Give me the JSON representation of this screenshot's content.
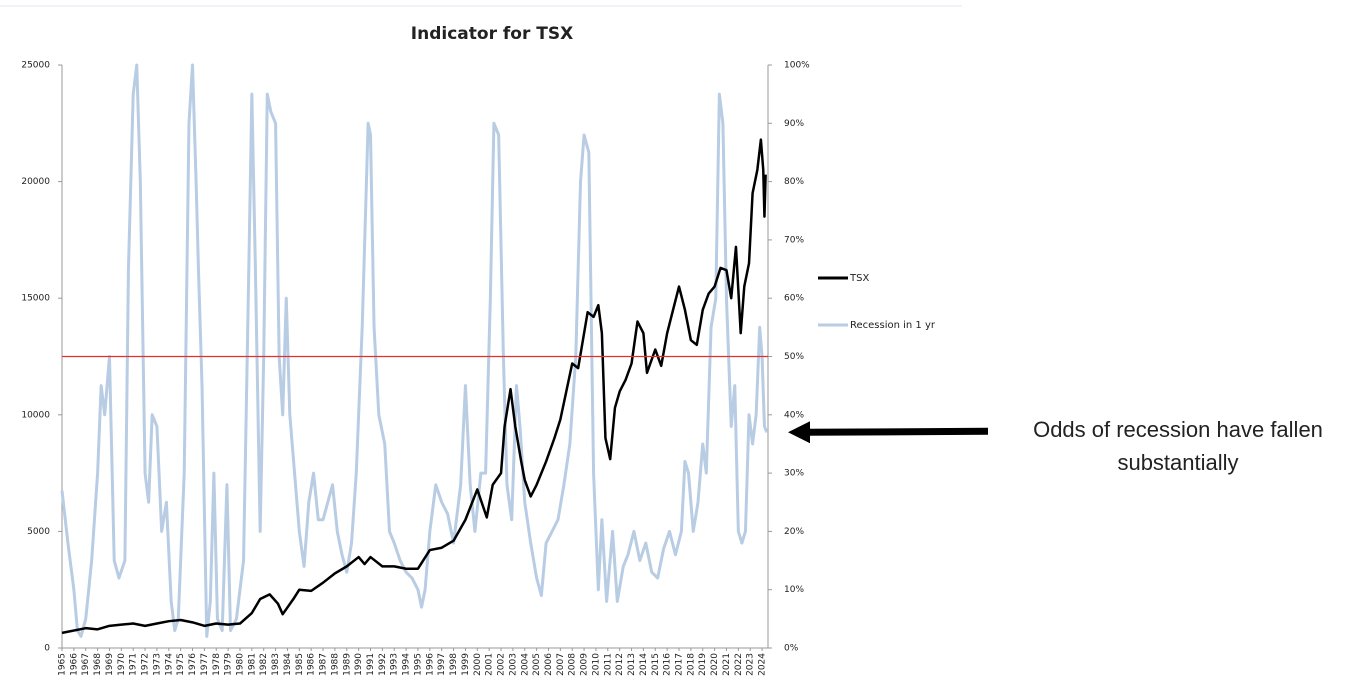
{
  "chart_data": {
    "type": "line",
    "title": "Indicator for TSX",
    "xlim": [
      1965,
      2024.5
    ],
    "xticks": [
      1965,
      1966,
      1967,
      1968,
      1969,
      1970,
      1971,
      1972,
      1973,
      1974,
      1975,
      1976,
      1977,
      1978,
      1979,
      1980,
      1981,
      1982,
      1983,
      1984,
      1985,
      1986,
      1987,
      1988,
      1989,
      1990,
      1991,
      1992,
      1993,
      1994,
      1995,
      1996,
      1997,
      1998,
      1999,
      2000,
      2001,
      2002,
      2003,
      2004,
      2005,
      2006,
      2007,
      2008,
      2009,
      2010,
      2011,
      2012,
      2013,
      2014,
      2015,
      2016,
      2017,
      2018,
      2019,
      2020,
      2021,
      2022,
      2023,
      2024
    ],
    "ylim": [
      0,
      25000
    ],
    "yticks": [
      0,
      5000,
      10000,
      15000,
      20000,
      25000
    ],
    "y2lim": [
      0,
      100
    ],
    "y2ticks": [
      {
        "value": 0,
        "label": "0%"
      },
      {
        "value": 10,
        "label": "10%"
      },
      {
        "value": 20,
        "label": "20%"
      },
      {
        "value": 30,
        "label": "30%"
      },
      {
        "value": 40,
        "label": "40%"
      },
      {
        "value": 50,
        "label": "50%"
      },
      {
        "value": 60,
        "label": "60%"
      },
      {
        "value": 70,
        "label": "70%"
      },
      {
        "value": 80,
        "label": "80%"
      },
      {
        "value": 90,
        "label": "90%"
      },
      {
        "value": 100,
        "label": "100%"
      }
    ],
    "legend": "right",
    "reference_line": {
      "value": 50,
      "axis": "y2",
      "color": "#e03030"
    },
    "annotation": {
      "lines": [
        "Odds of recession have fallen",
        "substantially"
      ],
      "points_to": 37,
      "axis": "y2"
    },
    "series": [
      {
        "name": "TSX",
        "color": "#000000",
        "axis": "y",
        "x": [
          1965,
          1967,
          1968,
          1969,
          1970,
          1971,
          1972,
          1973,
          1974,
          1975,
          1976,
          1977,
          1978,
          1979,
          1980,
          1981,
          1981.7,
          1982.5,
          1983.2,
          1983.6,
          1984.5,
          1985,
          1986,
          1987,
          1988,
          1989,
          1990,
          1990.5,
          1991,
          1992,
          1993,
          1994,
          1995,
          1996,
          1997,
          1998,
          1999,
          2000,
          2000.8,
          2001.3,
          2002,
          2002.3,
          2002.8,
          2003.2,
          2003.7,
          2004,
          2004.5,
          2005,
          2005.8,
          2006.5,
          2007,
          2007.5,
          2008,
          2008.5,
          2009,
          2009.3,
          2009.8,
          2010.2,
          2010.5,
          2010.8,
          2011.2,
          2011.6,
          2012,
          2012.5,
          2013,
          2013.5,
          2014,
          2014.3,
          2015,
          2015.5,
          2016,
          2016.5,
          2017,
          2017.5,
          2018,
          2018.5,
          2019,
          2019.5,
          2020,
          2020.5,
          2021,
          2021.4,
          2021.8,
          2022.2,
          2022.5,
          2022.9,
          2023.2,
          2023.6,
          2023.9,
          2024.1,
          2024.2,
          2024.3
        ],
        "values": [
          650,
          850,
          800,
          950,
          1000,
          1050,
          950,
          1050,
          1150,
          1200,
          1100,
          950,
          1050,
          1000,
          1050,
          1500,
          2100,
          2300,
          1900,
          1450,
          2100,
          2500,
          2450,
          2800,
          3200,
          3500,
          3900,
          3600,
          3900,
          3500,
          3500,
          3400,
          3400,
          4200,
          4300,
          4600,
          5500,
          6800,
          5600,
          7000,
          7500,
          9500,
          11100,
          9500,
          8000,
          7200,
          6500,
          7000,
          8000,
          9000,
          9800,
          11000,
          12200,
          12000,
          13500,
          14400,
          14200,
          14700,
          13500,
          9000,
          8100,
          10300,
          11000,
          11500,
          12200,
          14000,
          13500,
          11800,
          12800,
          12100,
          13500,
          14500,
          15500,
          14500,
          13200,
          13000,
          14500,
          15200,
          15500,
          16300,
          16200,
          15000,
          17200,
          13500,
          15500,
          16500,
          19500,
          20500,
          21800,
          20500,
          18500,
          20300
        ]
      },
      {
        "name": "Recession in 1 yr",
        "color": "#b8cce4",
        "axis": "y2",
        "x": [
          1965,
          1965.5,
          1966,
          1966.3,
          1966.6,
          1967,
          1967.5,
          1968,
          1968.3,
          1968.6,
          1969,
          1969.4,
          1969.8,
          1970.3,
          1970.6,
          1971,
          1971.3,
          1971.6,
          1972,
          1972.3,
          1972.6,
          1973,
          1973.4,
          1973.8,
          1974.2,
          1974.5,
          1974.8,
          1975.3,
          1975.7,
          1976,
          1976.3,
          1976.5,
          1976.8,
          1977.2,
          1977.5,
          1977.8,
          1978.1,
          1978.5,
          1978.9,
          1979.2,
          1979.7,
          1980.3,
          1980.7,
          1981,
          1981.3,
          1981.7,
          1982,
          1982.3,
          1982.6,
          1983,
          1983.3,
          1983.6,
          1983.9,
          1984.2,
          1984.6,
          1985,
          1985.4,
          1985.8,
          1986.2,
          1986.6,
          1987,
          1987.4,
          1987.8,
          1988.2,
          1988.6,
          1989,
          1989.4,
          1989.8,
          1990.3,
          1990.8,
          1991,
          1991.3,
          1991.7,
          1992.2,
          1992.6,
          1993,
          1993.5,
          1994,
          1994.5,
          1995,
          1995.3,
          1995.6,
          1996,
          1996.5,
          1997,
          1997.5,
          1998,
          1998.6,
          1999,
          1999.4,
          1999.8,
          2000.3,
          2000.7,
          2001.1,
          2001.4,
          2001.8,
          2002.2,
          2002.5,
          2002.9,
          2003.3,
          2003.6,
          2004,
          2004.5,
          2005,
          2005.4,
          2005.8,
          2006.3,
          2006.8,
          2007.3,
          2007.8,
          2008.3,
          2008.7,
          2009,
          2009.4,
          2009.8,
          2010.2,
          2010.5,
          2010.9,
          2011.4,
          2011.8,
          2012.3,
          2012.7,
          2013.2,
          2013.7,
          2014.2,
          2014.7,
          2015.2,
          2015.7,
          2016.2,
          2016.7,
          2017.2,
          2017.5,
          2017.8,
          2018.2,
          2018.6,
          2019,
          2019.3,
          2019.7,
          2020.1,
          2020.4,
          2020.7,
          2021,
          2021.4,
          2021.7,
          2022,
          2022.3,
          2022.6,
          2022.9,
          2023.2,
          2023.5,
          2023.8,
          2024,
          2024.2,
          2024.4
        ],
        "values": [
          27,
          18,
          10,
          3,
          2,
          5,
          15,
          30,
          45,
          40,
          50,
          15,
          12,
          15,
          65,
          95,
          100,
          80,
          30,
          25,
          40,
          38,
          20,
          25,
          8,
          3,
          5,
          30,
          90,
          100,
          80,
          65,
          45,
          2,
          8,
          30,
          5,
          3,
          28,
          3,
          5,
          15,
          60,
          95,
          65,
          20,
          50,
          95,
          92,
          90,
          50,
          40,
          60,
          40,
          30,
          20,
          14,
          25,
          30,
          22,
          22,
          25,
          28,
          20,
          16,
          13,
          18,
          30,
          55,
          90,
          88,
          55,
          40,
          35,
          20,
          18,
          15,
          13,
          12,
          10,
          7,
          10,
          20,
          28,
          25,
          23,
          18,
          28,
          45,
          28,
          20,
          30,
          30,
          60,
          90,
          88,
          50,
          28,
          22,
          45,
          38,
          25,
          18,
          12,
          9,
          18,
          20,
          22,
          28,
          35,
          50,
          80,
          88,
          85,
          30,
          10,
          22,
          8,
          20,
          8,
          14,
          16,
          20,
          15,
          18,
          13,
          12,
          17,
          20,
          16,
          20,
          32,
          30,
          20,
          25,
          35,
          30,
          55,
          60,
          95,
          90,
          60,
          38,
          45,
          20,
          18,
          20,
          40,
          35,
          40,
          55,
          50,
          38,
          37
        ]
      }
    ]
  }
}
